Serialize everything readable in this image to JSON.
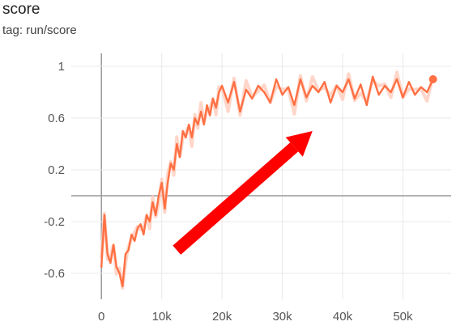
{
  "header": {
    "title": "score",
    "tag": "tag: run/score"
  },
  "colors": {
    "series": "#ff7043",
    "series_smoothed_raw": "#ffccbc",
    "grid": "#e8e8e8",
    "axis_zero": "#999999",
    "arrow": "#ff0000"
  },
  "annotation": {
    "type": "arrow",
    "color": "red",
    "from": [
      12500,
      -0.42
    ],
    "to": [
      35000,
      0.5
    ]
  },
  "chart_data": {
    "type": "line",
    "title": "score",
    "xlabel": "",
    "ylabel": "",
    "xlim": [
      -5000,
      58000
    ],
    "ylim": [
      -0.8,
      1.1
    ],
    "xticks": [
      0,
      10000,
      20000,
      30000,
      40000,
      50000
    ],
    "xtick_labels": [
      "0",
      "10k",
      "20k",
      "30k",
      "40k",
      "50k"
    ],
    "yticks": [
      1,
      0.6,
      0.2,
      -0.2,
      -0.6
    ],
    "ytick_labels": [
      "1",
      "0.6",
      "0.2",
      "-0.2",
      "-0.6"
    ],
    "grid": true,
    "legend": "none",
    "series": [
      {
        "x": [
          0,
          500,
          1000,
          1500,
          2000,
          2500,
          3000,
          3500,
          4000,
          4500,
          5000,
          5500,
          6000,
          6500,
          7000,
          7500,
          8000,
          8500,
          9000,
          9500,
          10000,
          10500,
          11000,
          11500,
          12000,
          12500,
          13000,
          13500,
          14000,
          14500,
          15000,
          15500,
          16000,
          16500,
          17000,
          17500,
          18000,
          18500,
          19000,
          19500,
          20000,
          21000,
          22000,
          23000,
          24000,
          25000,
          26000,
          27000,
          28000,
          29000,
          30000,
          31000,
          32000,
          33000,
          34000,
          35000,
          36000,
          37000,
          38000,
          39000,
          40000,
          41000,
          42000,
          43000,
          44000,
          45000,
          46000,
          47000,
          48000,
          49000,
          50000,
          51000,
          52000,
          53000,
          54000,
          55000
        ],
        "y": [
          -0.55,
          -0.15,
          -0.45,
          -0.52,
          -0.38,
          -0.55,
          -0.6,
          -0.7,
          -0.45,
          -0.42,
          -0.3,
          -0.35,
          -0.25,
          -0.22,
          -0.3,
          -0.15,
          -0.2,
          -0.05,
          -0.15,
          0.0,
          0.1,
          -0.1,
          0.1,
          0.25,
          0.2,
          0.4,
          0.3,
          0.5,
          0.45,
          0.55,
          0.45,
          0.6,
          0.55,
          0.65,
          0.55,
          0.7,
          0.62,
          0.75,
          0.68,
          0.8,
          0.85,
          0.72,
          0.88,
          0.65,
          0.82,
          0.75,
          0.85,
          0.8,
          0.72,
          0.9,
          0.78,
          0.84,
          0.7,
          0.9,
          0.76,
          0.85,
          0.8,
          0.88,
          0.72,
          0.85,
          0.8,
          0.9,
          0.75,
          0.86,
          0.7,
          0.92,
          0.78,
          0.85,
          0.8,
          0.9,
          0.76,
          0.88,
          0.78,
          0.84,
          0.8,
          0.9
        ]
      }
    ]
  }
}
